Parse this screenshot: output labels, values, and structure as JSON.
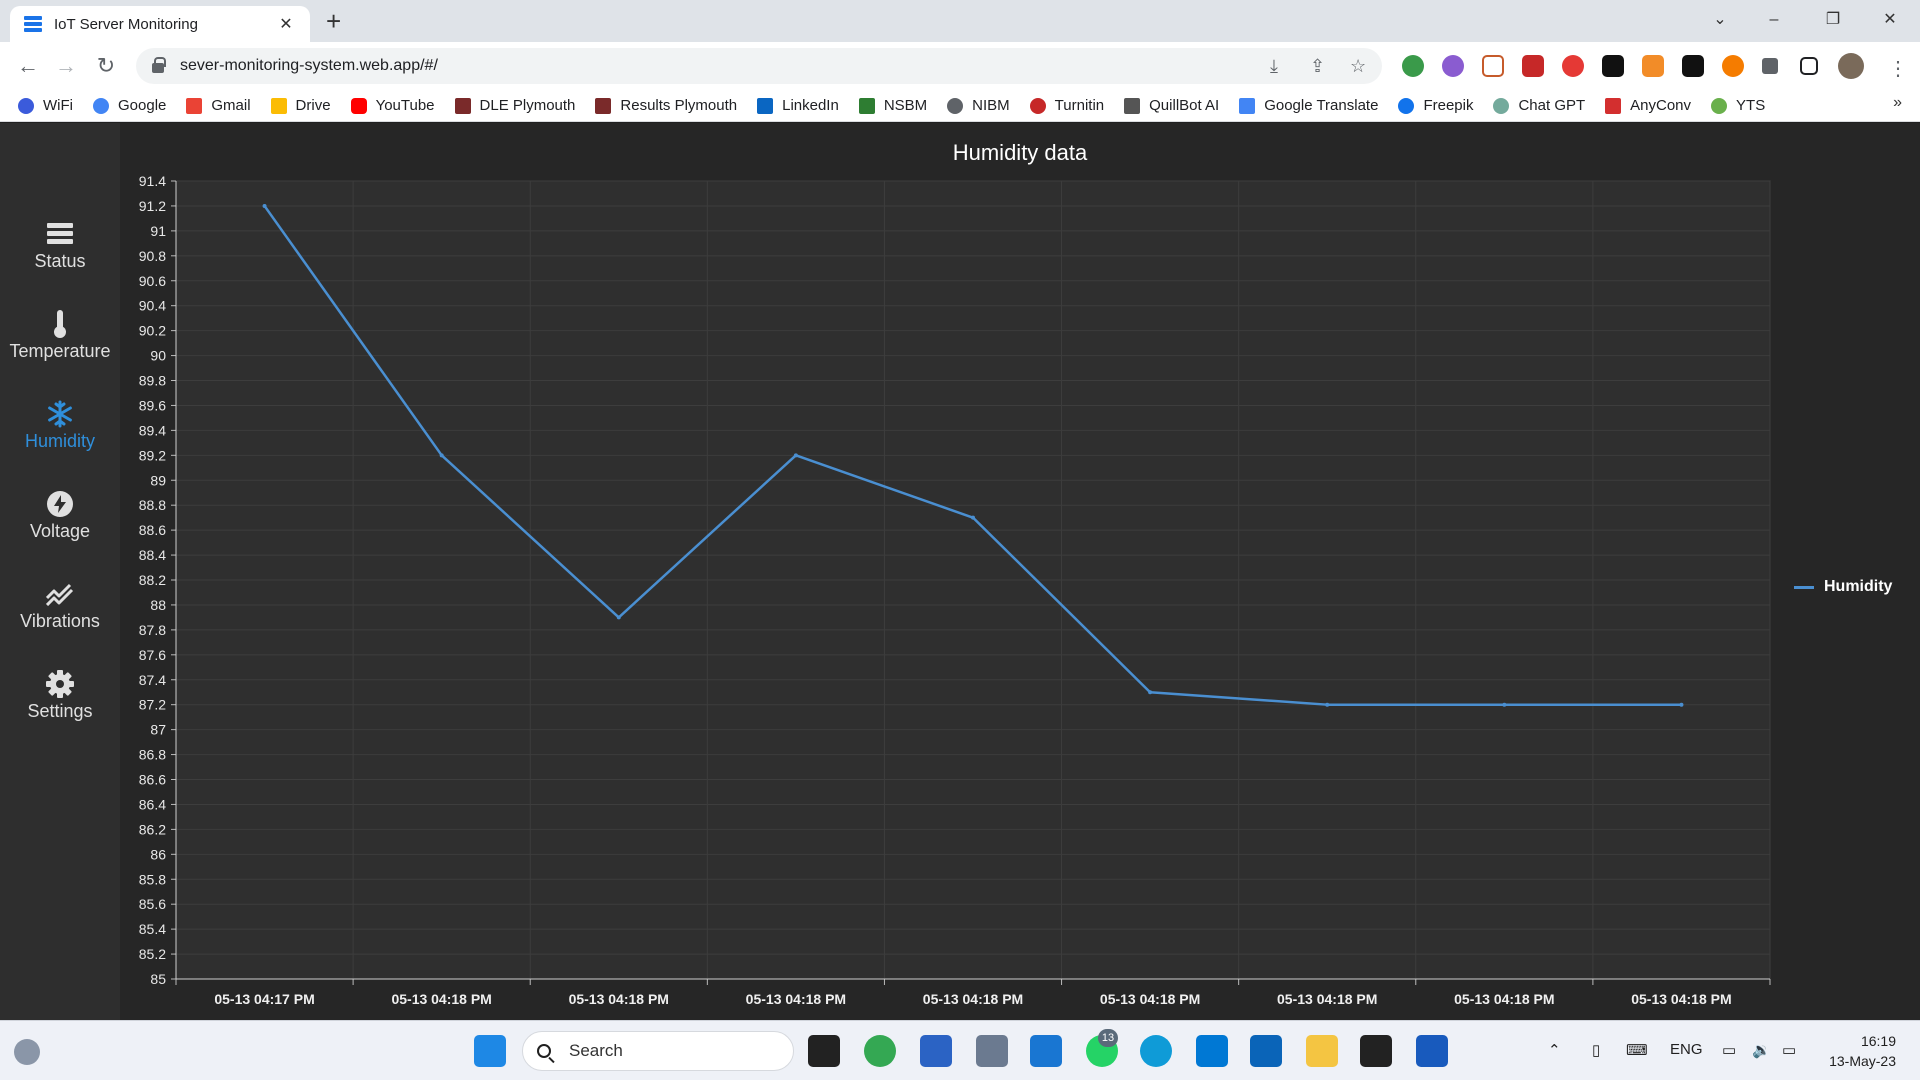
{
  "browser": {
    "tab_title": "IoT Server Monitoring",
    "url": "sever-monitoring-system.web.app/#/",
    "bookmarks": [
      "WiFi",
      "Google",
      "Gmail",
      "Drive",
      "YouTube",
      "DLE Plymouth",
      "Results Plymouth",
      "LinkedIn",
      "NSBM",
      "NIBM",
      "Turnitin",
      "QuillBot AI",
      "Google Translate",
      "Freepik",
      "Chat GPT",
      "AnyConv",
      "YTS"
    ]
  },
  "sidebar": {
    "items": [
      {
        "label": "Status",
        "icon": "list-icon"
      },
      {
        "label": "Temperature",
        "icon": "thermometer-icon"
      },
      {
        "label": "Humidity",
        "icon": "snowflake-icon",
        "active": true
      },
      {
        "label": "Voltage",
        "icon": "bolt-icon"
      },
      {
        "label": "Vibrations",
        "icon": "wave-icon"
      },
      {
        "label": "Settings",
        "icon": "gear-icon"
      }
    ]
  },
  "chart_data": {
    "type": "line",
    "title": "Humidity data",
    "categories": [
      "05-13 04:17 PM",
      "05-13 04:18 PM",
      "05-13 04:18 PM",
      "05-13 04:18 PM",
      "05-13 04:18 PM",
      "05-13 04:18 PM",
      "05-13 04:18 PM",
      "05-13 04:18 PM",
      "05-13 04:18 PM"
    ],
    "series": [
      {
        "name": "Humidity",
        "values": [
          91.2,
          89.2,
          87.9,
          89.2,
          88.7,
          87.3,
          87.2,
          87.2,
          87.2
        ],
        "color": "#4a8fd1"
      }
    ],
    "ylim": [
      85,
      91.4
    ],
    "ytick_step": 0.2,
    "grid": true,
    "legend": "right"
  },
  "taskbar": {
    "search_label": "Search",
    "badge": "13",
    "language": "ENG",
    "time": "16:19",
    "date": "13-May-23"
  }
}
